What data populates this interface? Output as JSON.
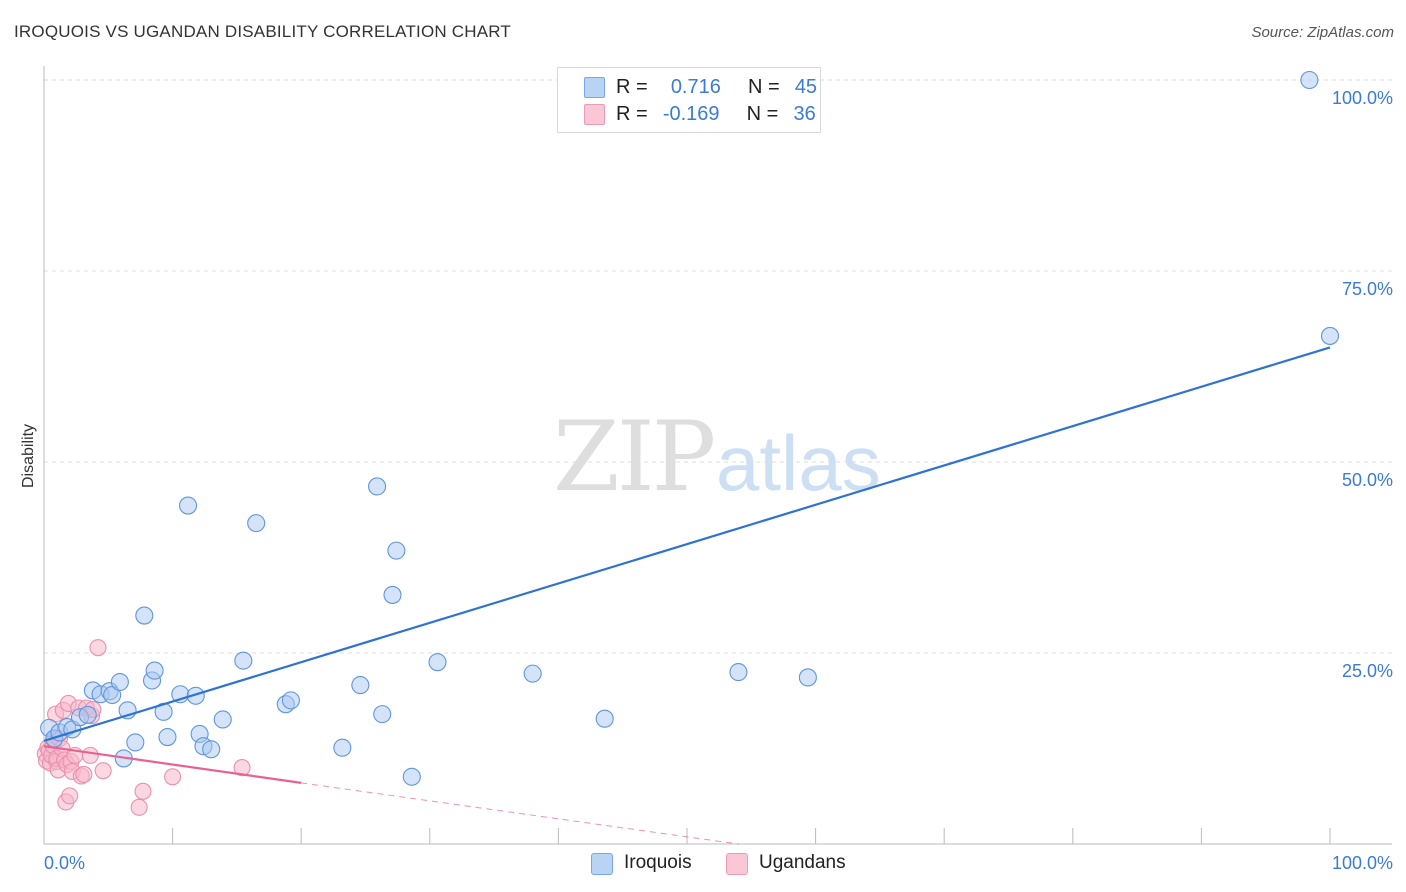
{
  "header": {
    "title": "IROQUOIS VS UGANDAN DISABILITY CORRELATION CHART",
    "source": "Source: ZipAtlas.com"
  },
  "watermark": {
    "zip": "ZIP",
    "atlas": "atlas"
  },
  "legend": {
    "rows": [
      {
        "r_label": "R =",
        "r_value": "0.716",
        "n_label": "N =",
        "n_value": "45"
      },
      {
        "r_label": "R =",
        "r_value": "-0.169",
        "n_label": "N =",
        "n_value": "36"
      }
    ]
  },
  "bottom_legend": [
    {
      "label": "Iroquois"
    },
    {
      "label": "Ugandans"
    }
  ],
  "chart_data": {
    "type": "scatter",
    "title": "IROQUOIS VS UGANDAN DISABILITY CORRELATION CHART",
    "xlabel": "",
    "ylabel": "Disability",
    "xlim": [
      0,
      100
    ],
    "ylim": [
      0,
      100
    ],
    "x_tick_labels": [
      "0.0%",
      "100.0%"
    ],
    "y_tick_labels": [
      "100.0%",
      "75.0%",
      "50.0%",
      "25.0%"
    ],
    "y_ticks": [
      100,
      75,
      50,
      25
    ],
    "grid": true,
    "legend_placement": "top-center",
    "colors": {
      "iroquois_fill": "#aac8f0",
      "iroquois_stroke": "#5f96dc",
      "iroquois_line": "#2f73d2",
      "ugandans_fill": "#f6b8cb",
      "ugandans_stroke": "#ec8fae",
      "ugandans_line": "#e8628f",
      "value_text": "#3a7bd5",
      "grid": "#dddddd",
      "axis": "#bbbbbb"
    },
    "series": [
      {
        "name": "Iroquois",
        "R": 0.716,
        "N": 45,
        "trend": {
          "x": [
            0,
            100
          ],
          "y": [
            13.5,
            65.0
          ]
        },
        "points": [
          [
            0.4,
            15.2
          ],
          [
            0.8,
            13.8
          ],
          [
            1.2,
            14.6
          ],
          [
            1.8,
            15.3
          ],
          [
            2.2,
            15.0
          ],
          [
            2.8,
            16.6
          ],
          [
            3.4,
            16.9
          ],
          [
            3.8,
            20.1
          ],
          [
            4.4,
            19.6
          ],
          [
            5.1,
            20.0
          ],
          [
            5.3,
            19.5
          ],
          [
            5.9,
            21.2
          ],
          [
            6.2,
            11.2
          ],
          [
            6.5,
            17.5
          ],
          [
            7.1,
            13.3
          ],
          [
            7.8,
            29.9
          ],
          [
            8.4,
            21.4
          ],
          [
            8.6,
            22.7
          ],
          [
            9.3,
            17.3
          ],
          [
            9.6,
            14.0
          ],
          [
            10.6,
            19.6
          ],
          [
            11.2,
            44.3
          ],
          [
            11.8,
            19.4
          ],
          [
            12.1,
            14.4
          ],
          [
            12.4,
            12.8
          ],
          [
            13.0,
            12.4
          ],
          [
            13.9,
            16.3
          ],
          [
            15.5,
            24.0
          ],
          [
            16.5,
            42.0
          ],
          [
            18.8,
            18.3
          ],
          [
            19.2,
            18.8
          ],
          [
            23.2,
            12.6
          ],
          [
            24.6,
            20.8
          ],
          [
            25.9,
            46.8
          ],
          [
            26.3,
            17.0
          ],
          [
            27.1,
            32.6
          ],
          [
            27.4,
            38.4
          ],
          [
            28.6,
            8.8
          ],
          [
            30.6,
            23.8
          ],
          [
            38.0,
            22.3
          ],
          [
            43.6,
            16.4
          ],
          [
            54.0,
            22.5
          ],
          [
            59.4,
            21.8
          ],
          [
            98.4,
            100.0
          ],
          [
            100.0,
            66.5
          ]
        ]
      },
      {
        "name": "Ugandans",
        "R": -0.169,
        "N": 36,
        "trend": {
          "x": [
            0,
            20
          ],
          "y": [
            12.8,
            8.0
          ]
        },
        "trend_dashed": {
          "x": [
            20,
            54
          ],
          "y": [
            8.0,
            0.0
          ]
        },
        "points": [
          [
            0.1,
            11.8
          ],
          [
            0.2,
            10.9
          ],
          [
            0.3,
            12.6
          ],
          [
            0.4,
            12.2
          ],
          [
            0.5,
            10.6
          ],
          [
            0.6,
            11.6
          ],
          [
            0.7,
            12.9
          ],
          [
            0.8,
            13.6
          ],
          [
            0.9,
            17.0
          ],
          [
            1.0,
            10.8
          ],
          [
            1.0,
            11.2
          ],
          [
            1.1,
            9.7
          ],
          [
            1.2,
            13.8
          ],
          [
            1.4,
            12.5
          ],
          [
            1.5,
            17.5
          ],
          [
            1.6,
            11.0
          ],
          [
            1.7,
            5.5
          ],
          [
            1.8,
            10.4
          ],
          [
            1.9,
            18.4
          ],
          [
            2.0,
            6.3
          ],
          [
            2.1,
            10.8
          ],
          [
            2.2,
            9.5
          ],
          [
            2.4,
            11.6
          ],
          [
            2.7,
            17.8
          ],
          [
            2.9,
            8.9
          ],
          [
            3.1,
            9.1
          ],
          [
            3.3,
            17.8
          ],
          [
            3.6,
            11.6
          ],
          [
            3.7,
            16.8
          ],
          [
            3.8,
            17.6
          ],
          [
            4.2,
            25.7
          ],
          [
            4.6,
            9.6
          ],
          [
            7.4,
            4.8
          ],
          [
            7.7,
            6.9
          ],
          [
            10.0,
            8.8
          ],
          [
            15.4,
            10.0
          ]
        ]
      }
    ]
  }
}
